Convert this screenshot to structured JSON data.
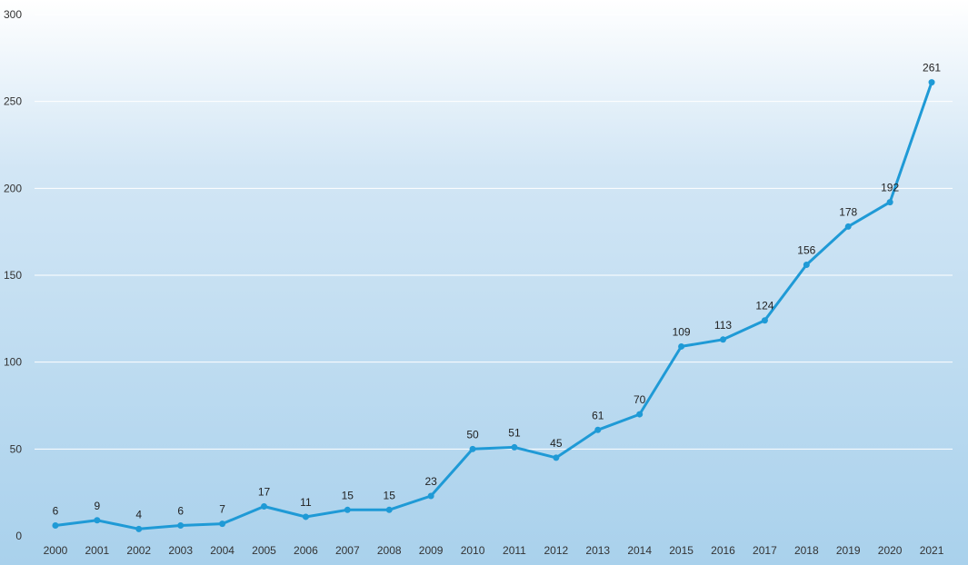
{
  "chart_data": {
    "type": "line",
    "title": "",
    "xlabel": "",
    "ylabel": "",
    "categories": [
      "2000",
      "2001",
      "2002",
      "2003",
      "2004",
      "2005",
      "2006",
      "2007",
      "2008",
      "2009",
      "2010",
      "2011",
      "2012",
      "2013",
      "2014",
      "2015",
      "2016",
      "2017",
      "2018",
      "2019",
      "2020",
      "2021"
    ],
    "series": [
      {
        "values": [
          6,
          9,
          4,
          6,
          7,
          17,
          11,
          15,
          15,
          23,
          50,
          51,
          45,
          61,
          70,
          109,
          113,
          124,
          156,
          178,
          192,
          261
        ]
      }
    ],
    "ylim": [
      0,
      300
    ],
    "yticks": [
      0,
      50,
      100,
      150,
      200,
      250,
      300
    ],
    "grid": true,
    "legend": "none",
    "data_labels": true,
    "colors": {
      "line": "#1f9ad6",
      "gradient_top": "#ffffff",
      "gradient_bottom": "#a9d1ec",
      "grid": "#ffffff"
    }
  }
}
